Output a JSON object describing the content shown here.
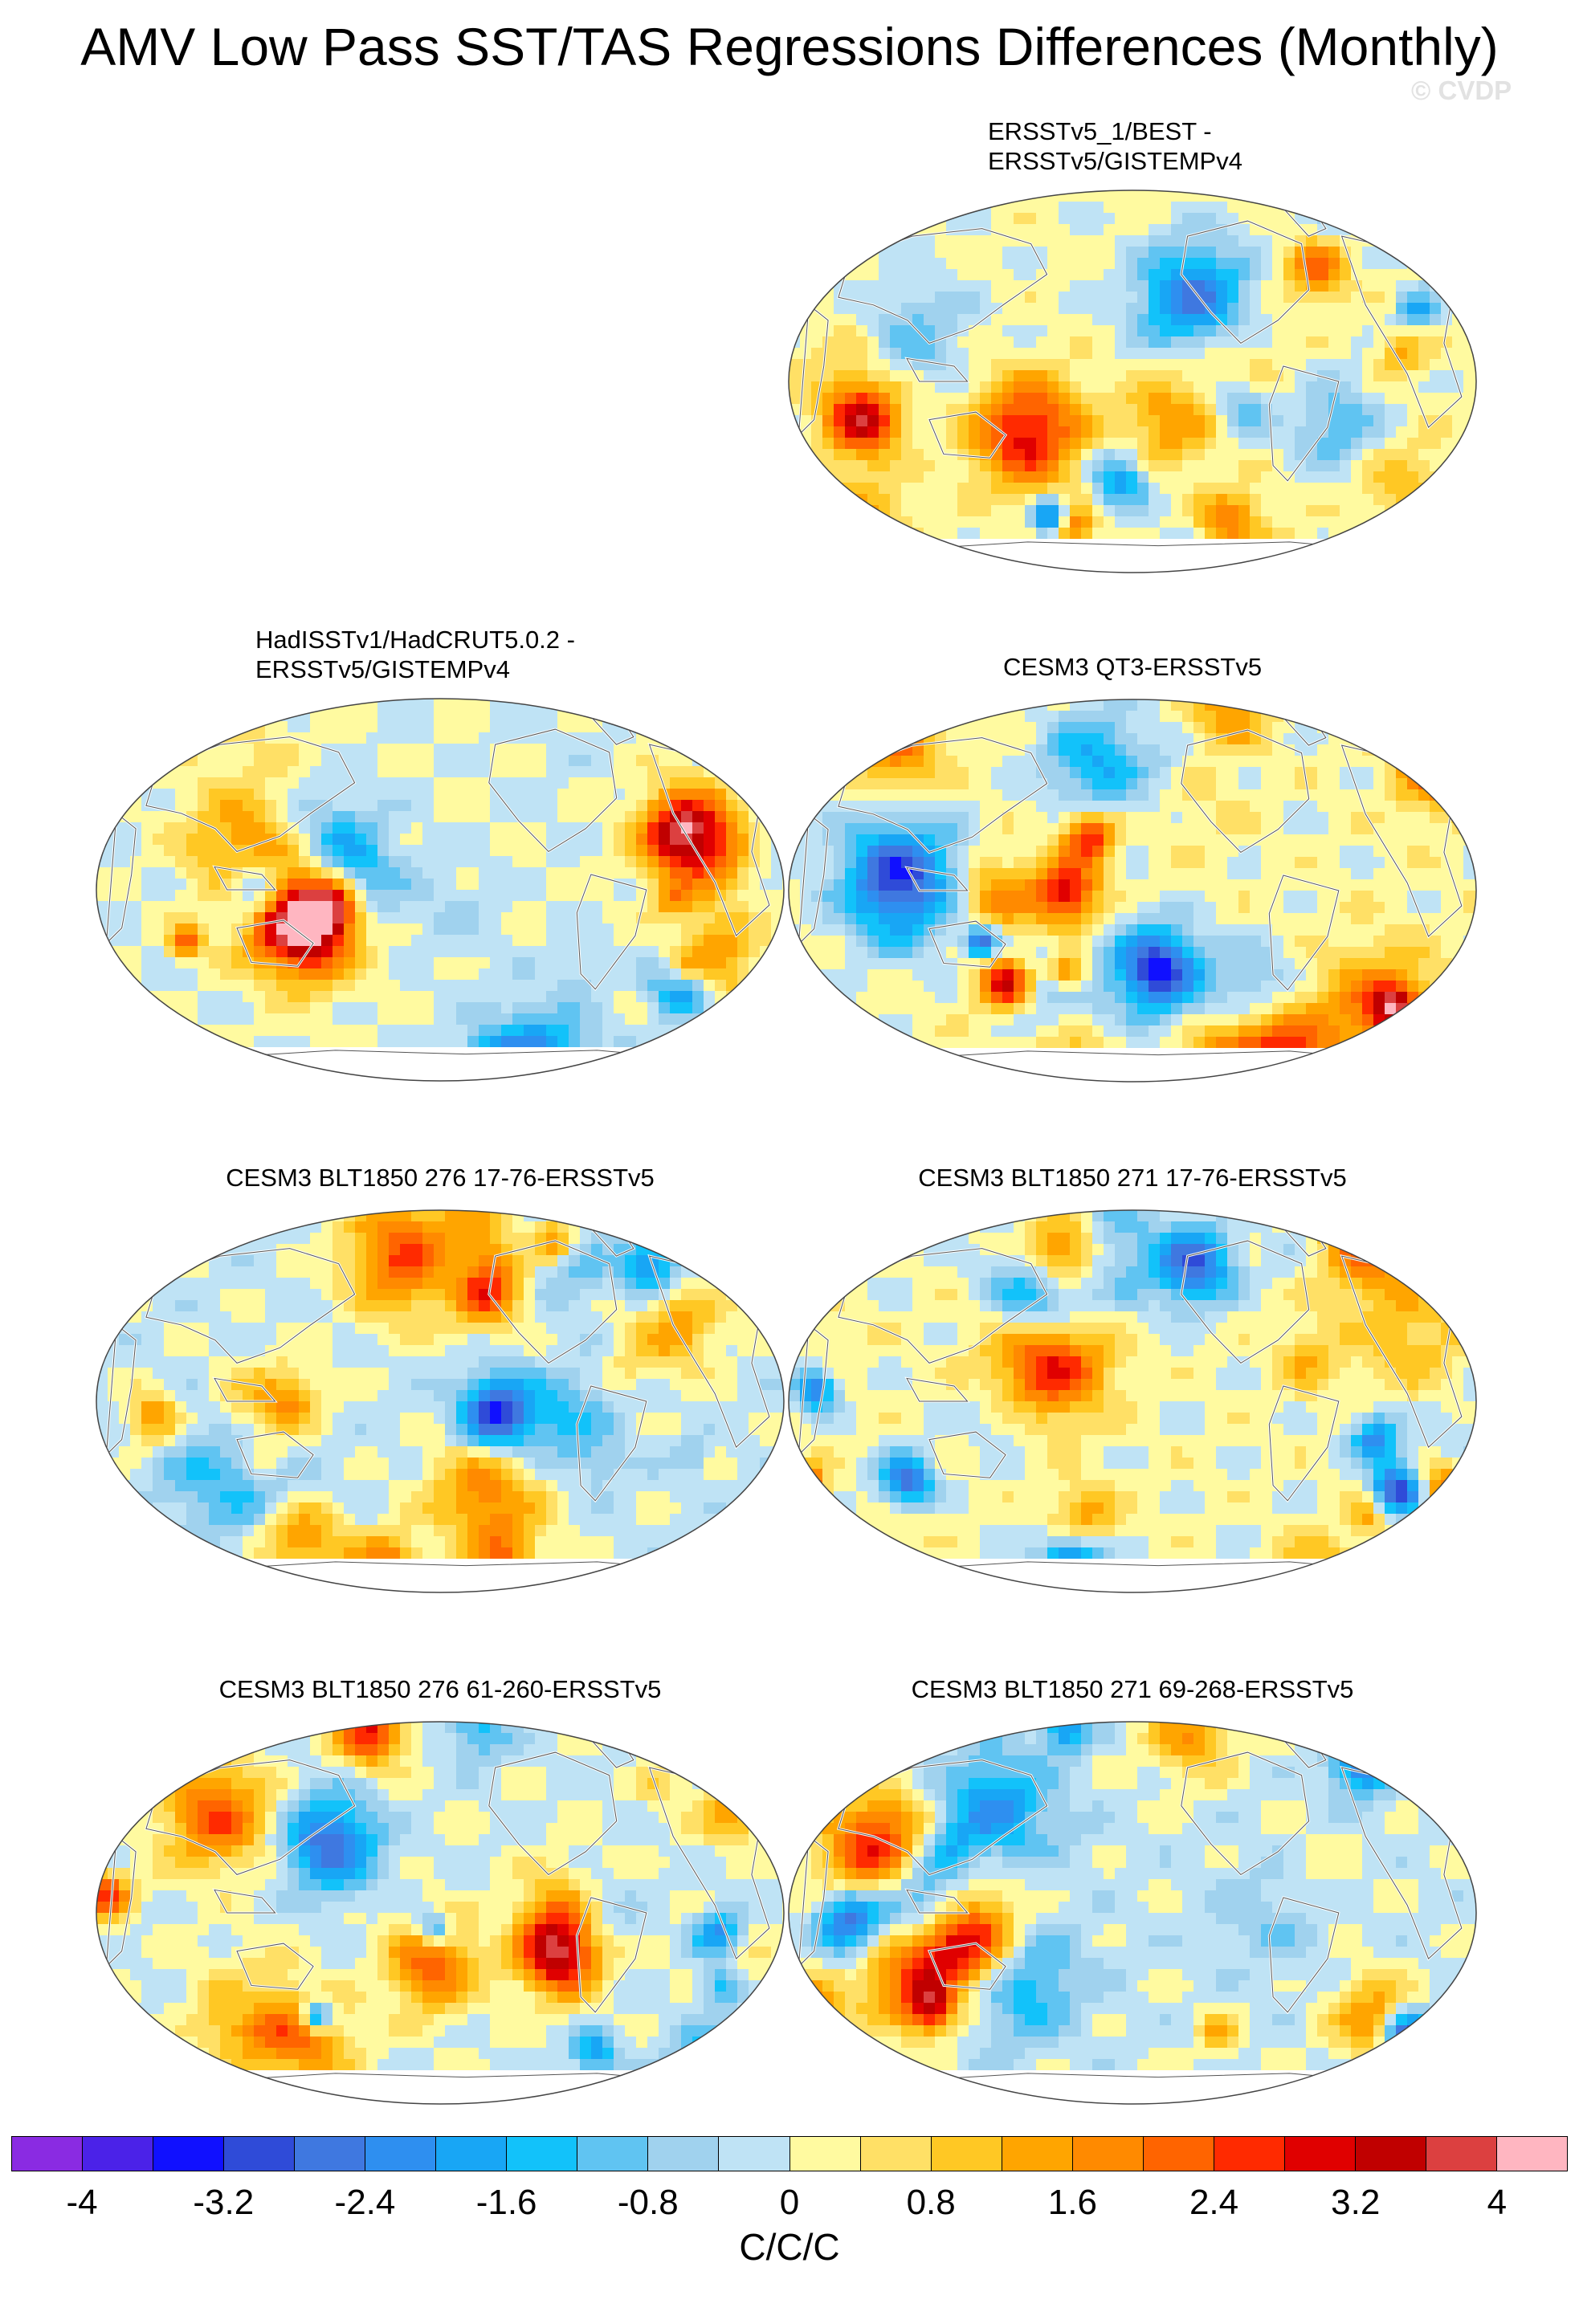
{
  "title": "AMV Low Pass SST/TAS Regressions Differences (Monthly)",
  "watermark": "© CVDP",
  "panels": [
    {
      "id": "p1",
      "title_lines": [
        "ERSSTv5_1/BEST -",
        "ERSSTv5/GISTEMPv4"
      ],
      "seed": 11,
      "bias": 0.1
    },
    {
      "id": "p2",
      "title_lines": [
        "HadISSTv1/HadCRUT5.0.2 -",
        "ERSSTv5/GISTEMPv4"
      ],
      "seed": 23,
      "bias": 0.0
    },
    {
      "id": "p3",
      "title_lines": [
        "CESM3 QT3-ERSSTv5"
      ],
      "seed": 37,
      "bias": 0.15
    },
    {
      "id": "p4",
      "title_lines": [
        "CESM3 BLT1850 276 17-76-ERSSTv5"
      ],
      "seed": 41,
      "bias": -0.1
    },
    {
      "id": "p5",
      "title_lines": [
        "CESM3 BLT1850 271 17-76-ERSSTv5"
      ],
      "seed": 53,
      "bias": 0.1
    },
    {
      "id": "p6",
      "title_lines": [
        "CESM3 BLT1850 276 61-260-ERSSTv5"
      ],
      "seed": 67,
      "bias": -0.05
    },
    {
      "id": "p7",
      "title_lines": [
        "CESM3 BLT1850 271 69-268-ERSSTv5"
      ],
      "seed": 79,
      "bias": -0.1
    }
  ],
  "colorbar": {
    "colors": [
      "#8a2be2",
      "#4b22e8",
      "#1010ff",
      "#2f4bd8",
      "#3f78e0",
      "#2e8ff0",
      "#18a6f5",
      "#12c2fa",
      "#60c4f2",
      "#a0d2ee",
      "#bfe3f5",
      "#fffaa0",
      "#ffe066",
      "#ffc824",
      "#ffa500",
      "#ff8a00",
      "#ff6400",
      "#ff2a00",
      "#e00000",
      "#c00000",
      "#dc4040",
      "#ffb6c1"
    ],
    "labels": [
      "-4",
      "-3.2",
      "-2.4",
      "-1.6",
      "-0.8",
      "0",
      "0.8",
      "1.6",
      "2.4",
      "3.2",
      "4"
    ],
    "min": -4.4,
    "max": 4.4,
    "units": "C/C/C"
  }
}
